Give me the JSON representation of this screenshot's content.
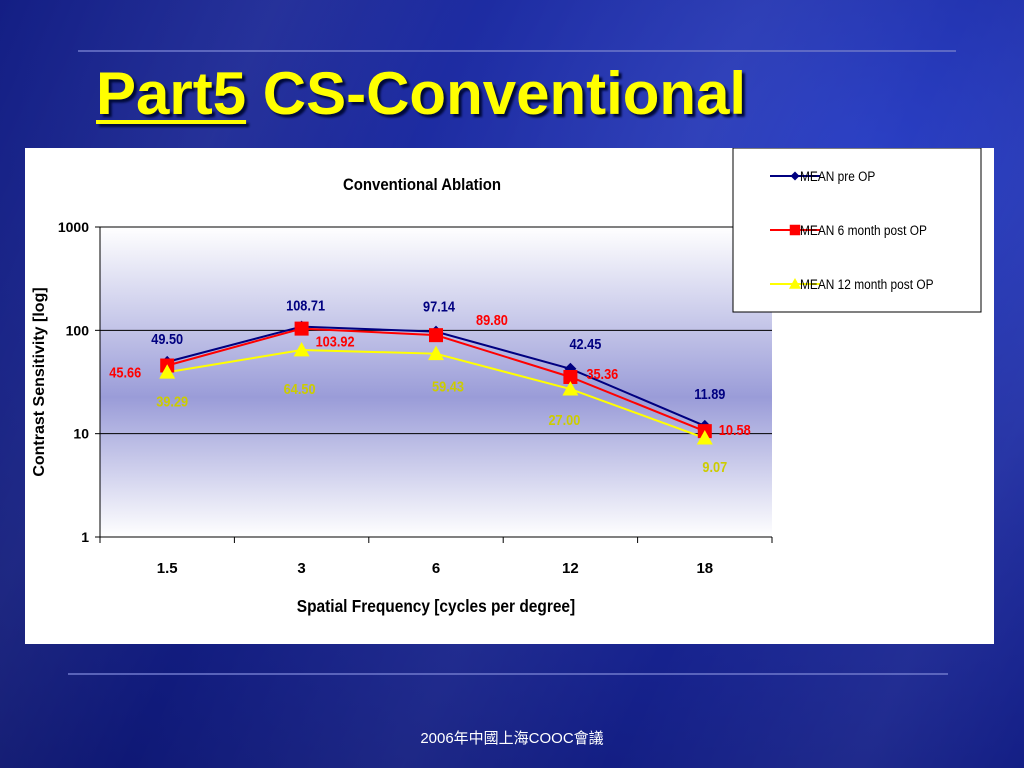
{
  "slide": {
    "title_part": "Part5",
    "title_rest": "CS-Conventional",
    "footer": "2006年中國上海COOC會議"
  },
  "colors": {
    "background": "#14208a",
    "title": "#ffff00",
    "pre_op": "#000080",
    "six_month": "#ff0000",
    "twelve_month": "#ffff00",
    "label_twelve_month": "#cccc00"
  },
  "chart_data": {
    "type": "line",
    "title": "Conventional Ablation",
    "xlabel": "Spatial Frequency [cycles per degree]",
    "ylabel": "Contrast Sensitivity [log]",
    "categories": [
      "1.5",
      "3",
      "6",
      "12",
      "18"
    ],
    "y_scale": "log",
    "ylim": [
      1,
      1000
    ],
    "y_ticks": [
      "1",
      "10",
      "100",
      "1000"
    ],
    "grid": true,
    "legend_position": "top-right",
    "series": [
      {
        "name": "MEAN pre OP",
        "marker": "diamond",
        "values": [
          49.5,
          108.71,
          97.14,
          42.45,
          11.89
        ],
        "labels": [
          "49.50",
          "108.71",
          "97.14",
          "42.45",
          "11.89"
        ]
      },
      {
        "name": "MEAN 6 month post OP",
        "marker": "square",
        "values": [
          45.66,
          103.92,
          89.8,
          35.36,
          10.58
        ],
        "labels": [
          "45.66",
          "103.92",
          "89.80",
          "35.36",
          "10.58"
        ]
      },
      {
        "name": "MEAN 12 month post OP",
        "marker": "triangle",
        "values": [
          39.29,
          64.5,
          59.43,
          27.0,
          9.07
        ],
        "labels": [
          "39.29",
          "64.50",
          "59.43",
          "27.00",
          "9.07"
        ]
      }
    ]
  }
}
